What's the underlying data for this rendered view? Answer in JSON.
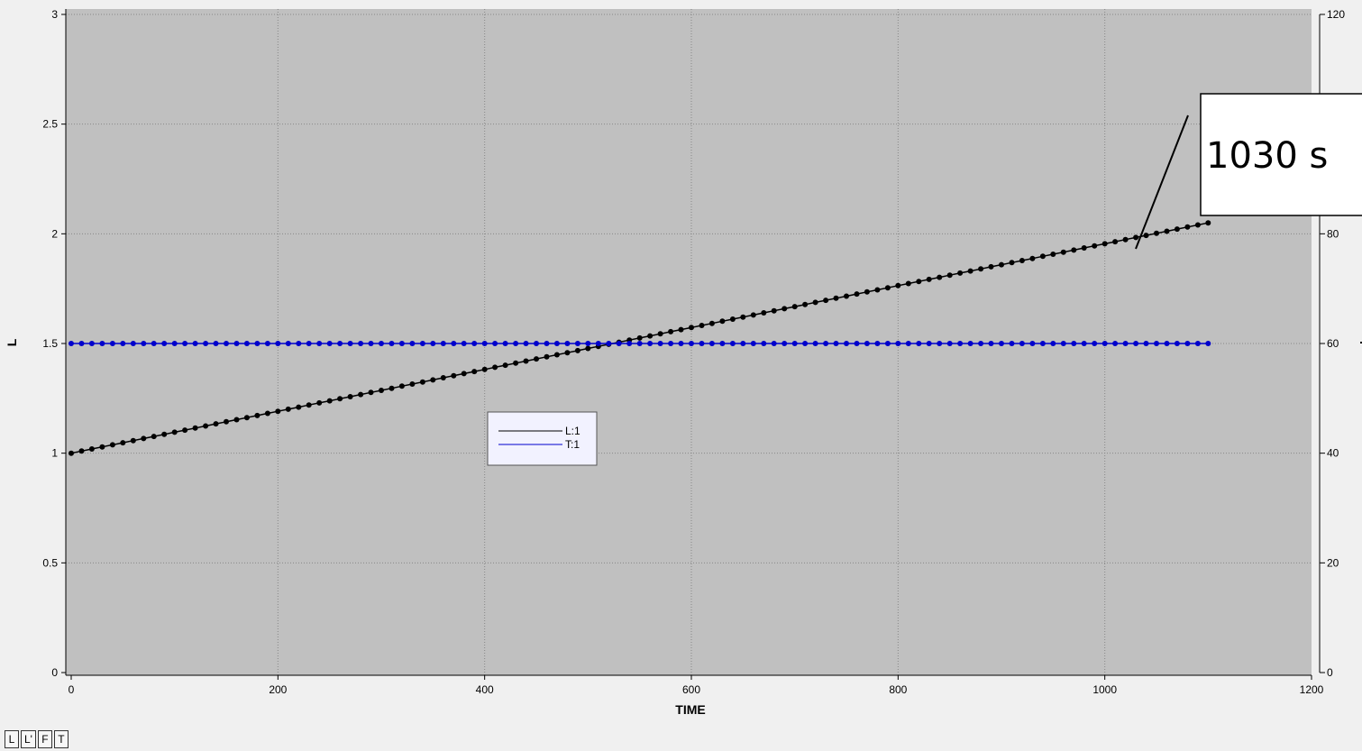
{
  "chart_data": {
    "type": "line",
    "title": "",
    "xlabel": "TIME",
    "ylabel": "L",
    "y2label": "T",
    "xlim": [
      0,
      1200
    ],
    "ylim": [
      0,
      3
    ],
    "y2lim": [
      0,
      120
    ],
    "grid": true,
    "x_ticks": [
      "0",
      "200",
      "400",
      "600",
      "800",
      "1000",
      "1200"
    ],
    "y_ticks": [
      "0",
      "0.5",
      "1",
      "1.5",
      "2",
      "2.5",
      "3"
    ],
    "y2_ticks": [
      "0",
      "20",
      "40",
      "60",
      "80",
      "100",
      "120"
    ],
    "series": [
      {
        "name": "L:1",
        "axis": "left",
        "color": "#000000",
        "x_start": 0,
        "x_end": 1100,
        "x_step": 10,
        "y_start": 1.0,
        "y_end": 2.05
      },
      {
        "name": "T:1",
        "axis": "right",
        "color": "#0000cc",
        "x_start": 0,
        "x_end": 1100,
        "x_step": 10,
        "y_start": 60,
        "y_end": 60
      }
    ],
    "legend_position": "center-left",
    "annotation": {
      "text": "1030 s",
      "x": 1030,
      "y": 2.0
    }
  },
  "tabs": [
    "L",
    "L'",
    "F",
    "T"
  ],
  "colors": {
    "plot_bg": "#c0c0c0",
    "grid": "#888888",
    "page_bg": "#f0f0f0"
  }
}
